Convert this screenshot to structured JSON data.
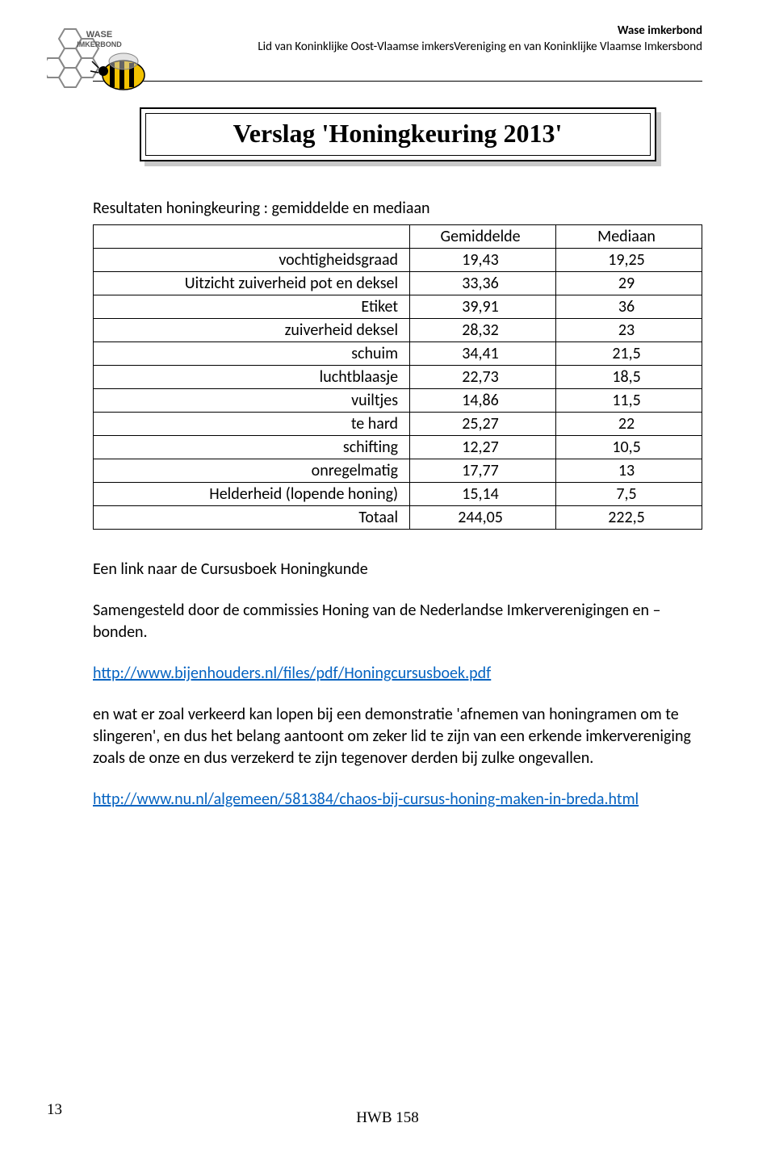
{
  "header": {
    "org": "Wase imkerbond",
    "subtitle": "Lid van Koninklijke Oost-Vlaamse imkersVereniging en van Koninklijke Vlaamse Imkersbond"
  },
  "logo": {
    "text_top": "WASE",
    "text_bottom": "IMKERBOND"
  },
  "title": "Verslag 'Honingkeuring 2013'",
  "section_lead": "Resultaten honingkeuring : gemiddelde en mediaan",
  "table": {
    "columns": [
      "",
      "Gemiddelde",
      "Mediaan"
    ],
    "rows": [
      [
        "vochtigheidsgraad",
        "19,43",
        "19,25"
      ],
      [
        "Uitzicht zuiverheid pot en deksel",
        "33,36",
        "29"
      ],
      [
        "Etiket",
        "39,91",
        "36"
      ],
      [
        "zuiverheid deksel",
        "28,32",
        "23"
      ],
      [
        "schuim",
        "34,41",
        "21,5"
      ],
      [
        "luchtblaasje",
        "22,73",
        "18,5"
      ],
      [
        "vuiltjes",
        "14,86",
        "11,5"
      ],
      [
        "te hard",
        "25,27",
        "22"
      ],
      [
        "schifting",
        "12,27",
        "10,5"
      ],
      [
        "onregelmatig",
        "17,77",
        "13"
      ],
      [
        "Helderheid (lopende honing)",
        "15,14",
        "7,5"
      ],
      [
        "Totaal",
        "244,05",
        "222,5"
      ]
    ]
  },
  "body": {
    "p1": "Een link naar de Cursusboek Honingkunde",
    "p2": "Samengesteld door de commissies Honing van de Nederlandse Imkerverenigingen en –bonden.",
    "link1": "http://www.bijenhouders.nl/files/pdf/Honingcursusboek.pdf",
    "p3": "en wat er zoal verkeerd kan lopen bij een demonstratie 'afnemen van honingramen om te slingeren', en dus het belang aantoont om zeker lid te zijn van een erkende imkervereniging zoals de onze en dus verzekerd te zijn tegenover derden bij zulke ongevallen.",
    "link2": "http://www.nu.nl/algemeen/581384/chaos-bij-cursus-honing-maken-in-breda.html"
  },
  "footer": {
    "code": "HWB 158",
    "page": "13"
  },
  "colors": {
    "link": "#0563c1",
    "shadow": "#c8c8c8",
    "text": "#000000",
    "bg": "#ffffff"
  }
}
